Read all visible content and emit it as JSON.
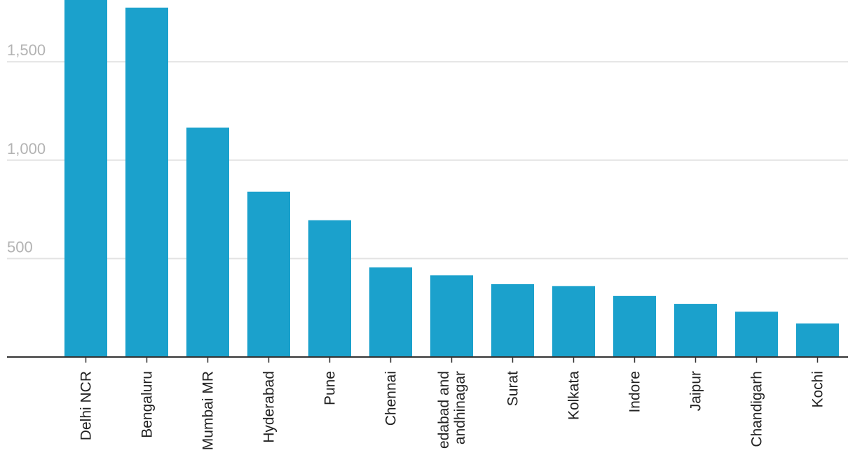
{
  "chart_data": {
    "type": "bar",
    "categories": [
      "Delhi NCR",
      "Bengaluru",
      "Mumbai MR",
      "Hyderabad",
      "Pune",
      "Chennai",
      "Ahmedabad and Gandhinagar",
      "Surat",
      "Kolkata",
      "Indore",
      "Jaipur",
      "Chandigarh",
      "Kochi"
    ],
    "category_label_lines": [
      [
        "Delhi NCR"
      ],
      [
        "Bengaluru"
      ],
      [
        "Mumbai MR"
      ],
      [
        "Hyderabad"
      ],
      [
        "Pune"
      ],
      [
        "Chennai"
      ],
      [
        "edabad and",
        "andhinagar"
      ],
      [
        "Surat"
      ],
      [
        "Kolkata"
      ],
      [
        "Indore"
      ],
      [
        "Jaipur"
      ],
      [
        "Chandigarh"
      ],
      [
        "Kochi"
      ]
    ],
    "values": [
      1820,
      1775,
      1165,
      840,
      695,
      455,
      415,
      370,
      360,
      310,
      270,
      230,
      170
    ],
    "title": "",
    "xlabel": "",
    "ylabel": "",
    "ylim": [
      0,
      1800
    ],
    "yticks": [
      500,
      1000,
      1500
    ],
    "ytick_labels": [
      "500",
      "1,000",
      "1,500"
    ],
    "grid": true,
    "bar_color": "#1ba1cc"
  }
}
